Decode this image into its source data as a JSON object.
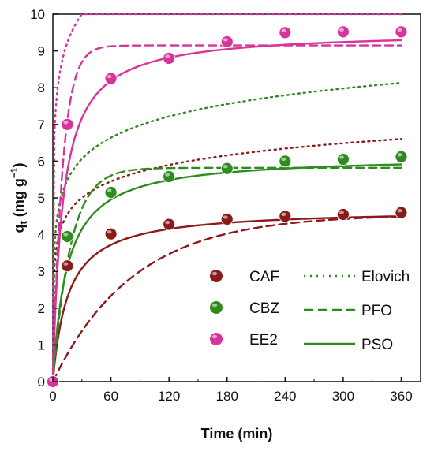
{
  "chart_data": {
    "type": "scatter",
    "xlabel": "Time (min)",
    "ylabel": "q",
    "ylabel_sub": "t",
    "ylabel_unit": " (mg g",
    "ylabel_exp": "−1",
    "ylabel_close": ")",
    "xlim": [
      0,
      380
    ],
    "ylim": [
      0,
      10
    ],
    "xticks": [
      0,
      60,
      120,
      180,
      240,
      300,
      360
    ],
    "yticks": [
      0,
      1,
      2,
      3,
      4,
      5,
      6,
      7,
      8,
      9,
      10
    ],
    "grid": false,
    "legend_position": "bottom-right",
    "series": [
      {
        "name": "CAF",
        "color": "#8b1a1a",
        "x": [
          0,
          15,
          60,
          120,
          180,
          240,
          300,
          360
        ],
        "y": [
          0,
          3.15,
          4.02,
          4.28,
          4.42,
          4.5,
          4.55,
          4.6
        ],
        "pfo": {
          "qe": 4.55,
          "k": 0.012
        },
        "pso": {
          "qe": 4.7,
          "k": 0.0135
        },
        "elovich": {
          "a": 50,
          "b": 1.55
        }
      },
      {
        "name": "CBZ",
        "color": "#2e8b1e",
        "x": [
          0,
          15,
          60,
          120,
          180,
          240,
          300,
          360
        ],
        "y": [
          0,
          3.95,
          5.15,
          5.58,
          5.8,
          6.0,
          6.05,
          6.12
        ],
        "pfo": {
          "qe": 5.82,
          "k": 0.055
        },
        "pso": {
          "qe": 6.15,
          "k": 0.0112
        },
        "elovich": {
          "a": 40,
          "b": 1.2
        }
      },
      {
        "name": "EE2",
        "color": "#d8339b",
        "x": [
          0,
          15,
          60,
          120,
          180,
          240,
          300,
          360
        ],
        "y": [
          0,
          7.0,
          8.25,
          8.8,
          9.25,
          9.5,
          9.52,
          9.52
        ],
        "pfo": {
          "qe": 9.15,
          "k": 0.1
        },
        "pso": {
          "qe": 9.55,
          "k": 0.0105
        },
        "elovich": {
          "a": 300,
          "b": 0.9
        }
      }
    ],
    "legend_markers": [
      {
        "label": "CAF",
        "color": "#8b1a1a"
      },
      {
        "label": "CBZ",
        "color": "#2e8b1e"
      },
      {
        "label": "EE2",
        "color": "#d8339b"
      }
    ],
    "legend_lines": [
      {
        "label": "Elovich",
        "style": "dotted",
        "color": "#2e8b1e"
      },
      {
        "label": "PFO",
        "style": "dashed",
        "color": "#2e8b1e"
      },
      {
        "label": "PSO",
        "style": "solid",
        "color": "#2e8b1e"
      }
    ]
  }
}
